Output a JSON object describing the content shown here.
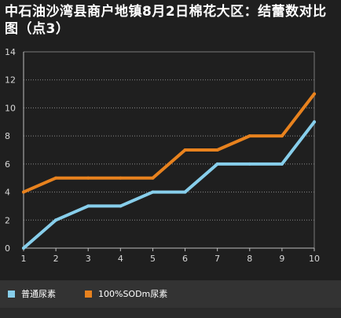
{
  "title": "中石油沙湾县商户地镇8月2日棉花大区：结蕾数对比图（点3）",
  "chart_data": {
    "type": "line",
    "x": [
      1,
      2,
      3,
      4,
      5,
      6,
      7,
      8,
      9,
      10
    ],
    "ylim": [
      0,
      14
    ],
    "yticks": [
      0,
      2,
      4,
      6,
      8,
      10,
      12,
      14
    ],
    "grid": true,
    "legend": "bottom",
    "series": [
      {
        "name": "普通尿素",
        "color": "#87ceeb",
        "values": [
          0,
          2,
          3,
          3,
          4,
          4,
          6,
          6,
          6,
          9
        ]
      },
      {
        "name": "100%SODm尿素",
        "color": "#e8821e",
        "values": [
          4,
          5,
          5,
          5,
          5,
          7,
          7,
          8,
          8,
          11
        ]
      }
    ]
  }
}
